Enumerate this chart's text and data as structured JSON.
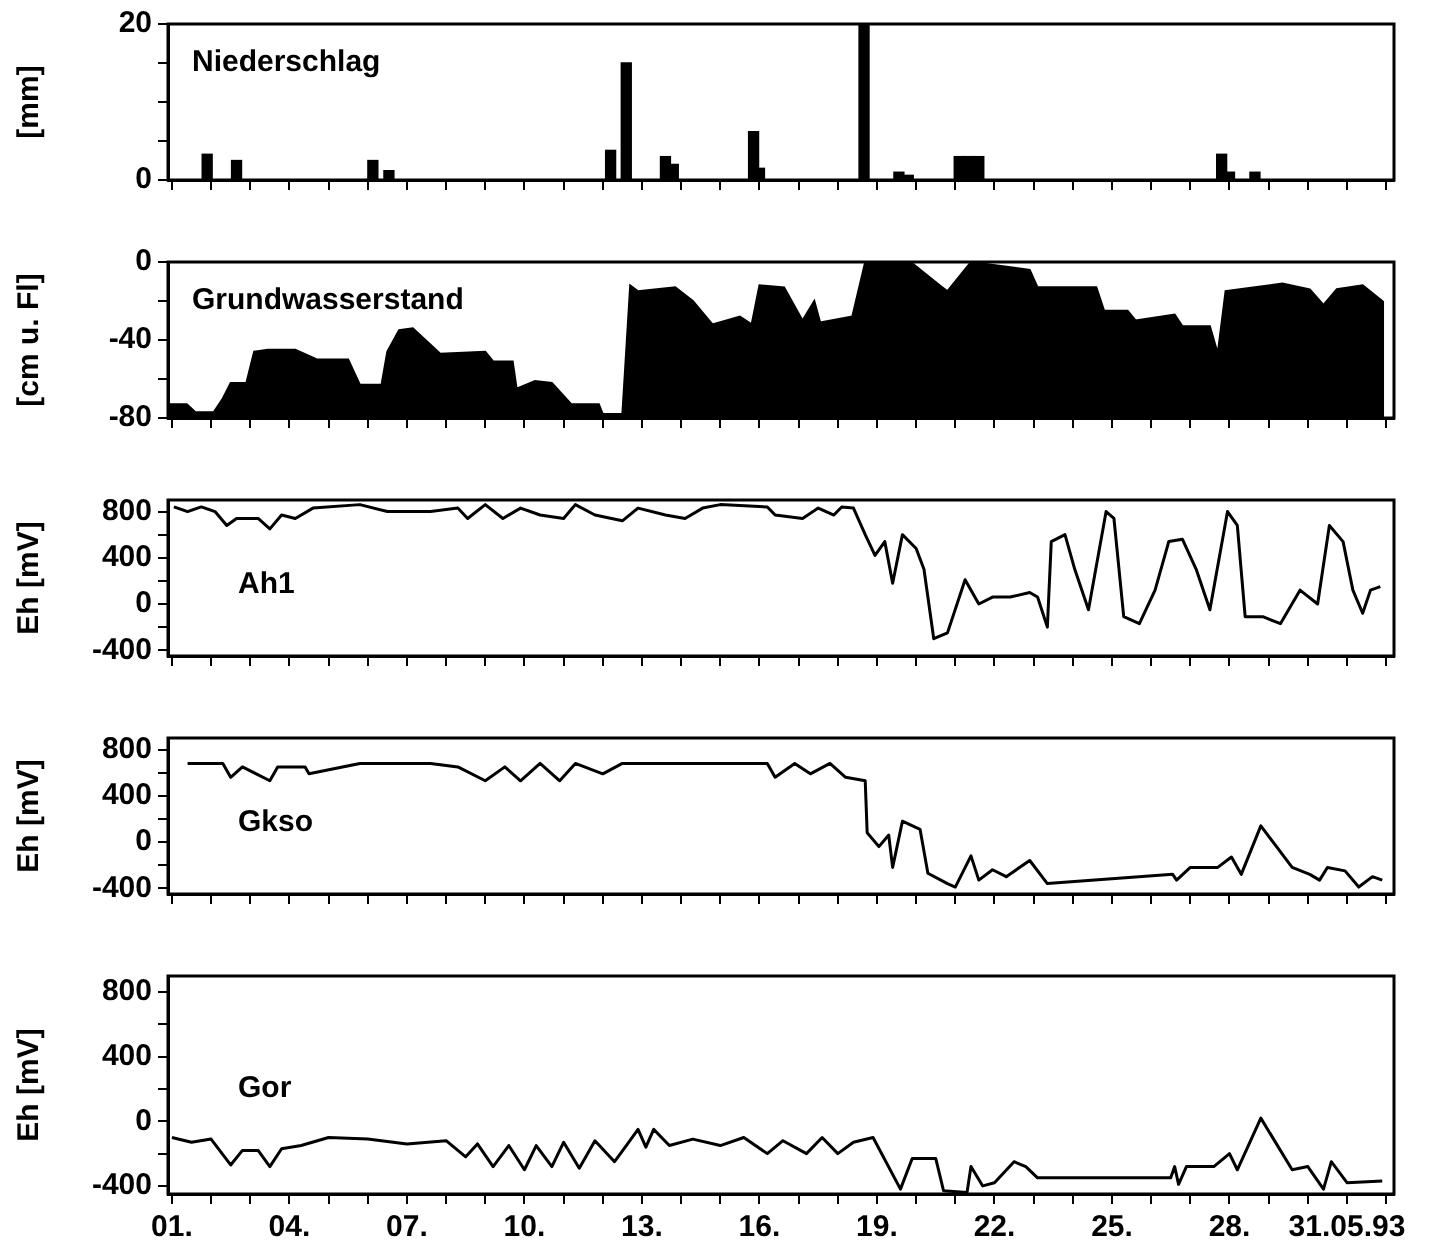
{
  "chart_data": [
    {
      "type": "bar",
      "annotations": [
        "Niederschlag"
      ],
      "ylabel": "[mm]",
      "color": "#000000",
      "tick_labels": "y",
      "x": [
        1.9,
        2.65,
        6.13,
        6.54,
        12.2,
        12.6,
        13.6,
        13.8,
        15.85,
        16.0,
        18.67,
        19.56,
        19.8,
        21.1,
        21.35,
        21.6,
        27.8,
        28.0,
        28.65
      ],
      "values": [
        3.3,
        2.5,
        2.5,
        1.2,
        3.8,
        15,
        3,
        2,
        6.2,
        1.5,
        20,
        1,
        0.6,
        3,
        3,
        3,
        3.3,
        1,
        1
      ],
      "xlim": [
        0.9,
        32.2
      ],
      "xticks": [
        {
          "value": 1,
          "label": null
        },
        {
          "value": 2,
          "label": null
        },
        {
          "value": 3,
          "label": null
        },
        {
          "value": 4,
          "label": null
        },
        {
          "value": 5,
          "label": null
        },
        {
          "value": 6,
          "label": null
        },
        {
          "value": 7,
          "label": null
        },
        {
          "value": 8,
          "label": null
        },
        {
          "value": 9,
          "label": null
        },
        {
          "value": 10,
          "label": null
        },
        {
          "value": 11,
          "label": null
        },
        {
          "value": 12,
          "label": null
        },
        {
          "value": 13,
          "label": null
        },
        {
          "value": 14,
          "label": null
        },
        {
          "value": 15,
          "label": null
        },
        {
          "value": 16,
          "label": null
        },
        {
          "value": 17,
          "label": null
        },
        {
          "value": 18,
          "label": null
        },
        {
          "value": 19,
          "label": null
        },
        {
          "value": 20,
          "label": null
        },
        {
          "value": 21,
          "label": null
        },
        {
          "value": 22,
          "label": null
        },
        {
          "value": 23,
          "label": null
        },
        {
          "value": 24,
          "label": null
        },
        {
          "value": 25,
          "label": null
        },
        {
          "value": 26,
          "label": null
        },
        {
          "value": 27,
          "label": null
        },
        {
          "value": 28,
          "label": null
        },
        {
          "value": 29,
          "label": null
        },
        {
          "value": 30,
          "label": null
        },
        {
          "value": 31,
          "label": null
        },
        {
          "value": 32,
          "label": null
        }
      ],
      "ylim": [
        0,
        20
      ],
      "yticks": [
        0,
        {
          "value": 5,
          "label": null
        },
        {
          "value": 10,
          "label": null
        },
        {
          "value": 15,
          "label": null
        },
        20
      ]
    },
    {
      "type": "area",
      "annotations": [
        "Grundwasserstand"
      ],
      "ylabel": "[cm u. Fl]",
      "color": "#000000",
      "tick_labels": "y",
      "x": [
        0.9,
        0.91,
        1.38,
        1.6,
        2.07,
        2.3,
        2.5,
        2.9,
        3.1,
        3.45,
        4.15,
        4.7,
        5.5,
        5.8,
        6.35,
        6.5,
        6.8,
        7.15,
        7.85,
        9,
        9.2,
        9.7,
        9.8,
        10.27,
        10.7,
        11.2,
        11.9,
        12,
        12.5,
        12.7,
        12.9,
        13.85,
        14.3,
        14.8,
        15.5,
        15.8,
        16,
        16.63,
        17.1,
        17.4,
        17.55,
        18.37,
        18.7,
        19.86,
        20.6,
        20.8,
        21.4,
        22.9,
        23.1,
        24.6,
        24.8,
        25.4,
        25.6,
        26.6,
        26.8,
        27.5,
        27.7,
        27.9,
        28.65,
        29.35,
        30.05,
        30.4,
        30.74,
        31.4,
        31.9,
        31.92
      ],
      "values": [
        -80,
        -73,
        -73,
        -77,
        -77,
        -70,
        -62,
        -62,
        -46,
        -45,
        -45,
        -50,
        -50,
        -63,
        -63,
        -46,
        -35,
        -34,
        -47,
        -46,
        -51,
        -51,
        -65,
        -61,
        -62,
        -73,
        -73,
        -78,
        -78,
        -12,
        -15,
        -13,
        -20,
        -32,
        -28,
        -32,
        -12,
        -13,
        -30,
        -20,
        -31,
        -28,
        0,
        0,
        -12,
        -15,
        0,
        -4,
        -13,
        -13,
        -25,
        -25,
        -30,
        -27,
        -33,
        -33,
        -47,
        -15,
        -13,
        -11,
        -14,
        -22,
        -14,
        -12,
        -20,
        -80
      ],
      "xlim": [
        0.9,
        32.2
      ],
      "xticks": [
        {
          "value": 1,
          "label": null
        },
        {
          "value": 2,
          "label": null
        },
        {
          "value": 3,
          "label": null
        },
        {
          "value": 4,
          "label": null
        },
        {
          "value": 5,
          "label": null
        },
        {
          "value": 6,
          "label": null
        },
        {
          "value": 7,
          "label": null
        },
        {
          "value": 8,
          "label": null
        },
        {
          "value": 9,
          "label": null
        },
        {
          "value": 10,
          "label": null
        },
        {
          "value": 11,
          "label": null
        },
        {
          "value": 12,
          "label": null
        },
        {
          "value": 13,
          "label": null
        },
        {
          "value": 14,
          "label": null
        },
        {
          "value": 15,
          "label": null
        },
        {
          "value": 16,
          "label": null
        },
        {
          "value": 17,
          "label": null
        },
        {
          "value": 18,
          "label": null
        },
        {
          "value": 19,
          "label": null
        },
        {
          "value": 20,
          "label": null
        },
        {
          "value": 21,
          "label": null
        },
        {
          "value": 22,
          "label": null
        },
        {
          "value": 23,
          "label": null
        },
        {
          "value": 24,
          "label": null
        },
        {
          "value": 25,
          "label": null
        },
        {
          "value": 26,
          "label": null
        },
        {
          "value": 27,
          "label": null
        },
        {
          "value": 28,
          "label": null
        },
        {
          "value": 29,
          "label": null
        },
        {
          "value": 30,
          "label": null
        },
        {
          "value": 31,
          "label": null
        },
        {
          "value": 32,
          "label": null
        }
      ],
      "ylim": [
        -80,
        0
      ],
      "yticks": [
        -80,
        {
          "value": -60,
          "label": null
        },
        -40,
        {
          "value": -20,
          "label": null
        },
        0
      ]
    },
    {
      "type": "line",
      "annotations": [
        "Ah1"
      ],
      "ylabel": "Eh [mV]",
      "color": "#000000",
      "tick_labels": "y",
      "x": [
        1.05,
        1.4,
        1.75,
        2.1,
        2.4,
        2.65,
        3.2,
        3.5,
        3.8,
        4.15,
        4.6,
        5.8,
        6.5,
        7.6,
        8.3,
        8.55,
        9,
        9.45,
        9.9,
        10.4,
        11,
        11.3,
        11.8,
        12.5,
        12.9,
        13.6,
        14.1,
        14.55,
        15,
        16.2,
        16.4,
        17.1,
        17.5,
        17.9,
        18.1,
        18.4,
        18.7,
        18.95,
        19.2,
        19.4,
        19.65,
        20,
        20.2,
        20.45,
        20.8,
        21.25,
        21.6,
        21.95,
        22.4,
        22.9,
        23.1,
        23.35,
        23.45,
        23.8,
        24.05,
        24.4,
        24.85,
        25.05,
        25.3,
        25.7,
        26.1,
        26.45,
        26.8,
        27.15,
        27.5,
        27.95,
        28.2,
        28.4,
        28.85,
        29.3,
        29.8,
        30.25,
        30.55,
        30.9,
        31.15,
        31.4,
        31.6,
        31.85
      ],
      "values": [
        840,
        800,
        840,
        800,
        680,
        740,
        740,
        650,
        770,
        740,
        830,
        860,
        800,
        800,
        830,
        740,
        860,
        740,
        830,
        770,
        740,
        860,
        770,
        720,
        830,
        770,
        740,
        830,
        860,
        840,
        770,
        740,
        830,
        770,
        840,
        830,
        600,
        420,
        540,
        180,
        600,
        480,
        300,
        -300,
        -250,
        210,
        0,
        60,
        60,
        100,
        60,
        -200,
        540,
        600,
        300,
        -50,
        800,
        740,
        -110,
        -170,
        120,
        540,
        560,
        300,
        -50,
        800,
        680,
        -110,
        -110,
        -170,
        120,
        0,
        680,
        540,
        120,
        -80,
        120,
        150
      ],
      "xlim": [
        0.9,
        32.2
      ],
      "xticks": [
        {
          "value": 1,
          "label": null
        },
        {
          "value": 2,
          "label": null
        },
        {
          "value": 3,
          "label": null
        },
        {
          "value": 4,
          "label": null
        },
        {
          "value": 5,
          "label": null
        },
        {
          "value": 6,
          "label": null
        },
        {
          "value": 7,
          "label": null
        },
        {
          "value": 8,
          "label": null
        },
        {
          "value": 9,
          "label": null
        },
        {
          "value": 10,
          "label": null
        },
        {
          "value": 11,
          "label": null
        },
        {
          "value": 12,
          "label": null
        },
        {
          "value": 13,
          "label": null
        },
        {
          "value": 14,
          "label": null
        },
        {
          "value": 15,
          "label": null
        },
        {
          "value": 16,
          "label": null
        },
        {
          "value": 17,
          "label": null
        },
        {
          "value": 18,
          "label": null
        },
        {
          "value": 19,
          "label": null
        },
        {
          "value": 20,
          "label": null
        },
        {
          "value": 21,
          "label": null
        },
        {
          "value": 22,
          "label": null
        },
        {
          "value": 23,
          "label": null
        },
        {
          "value": 24,
          "label": null
        },
        {
          "value": 25,
          "label": null
        },
        {
          "value": 26,
          "label": null
        },
        {
          "value": 27,
          "label": null
        },
        {
          "value": 28,
          "label": null
        },
        {
          "value": 29,
          "label": null
        },
        {
          "value": 30,
          "label": null
        },
        {
          "value": 31,
          "label": null
        },
        {
          "value": 32,
          "label": null
        }
      ],
      "ylim": [
        -450,
        900
      ],
      "yticks": [
        -400,
        {
          "value": -200,
          "label": null
        },
        0,
        {
          "value": 200,
          "label": null
        },
        400,
        {
          "value": 600,
          "label": null
        },
        800
      ]
    },
    {
      "type": "line",
      "annotations": [
        "Gkso"
      ],
      "ylabel": "Eh [mV]",
      "color": "#000000",
      "tick_labels": "y",
      "x": [
        1.4,
        2.3,
        2.5,
        2.8,
        3.5,
        3.7,
        4.4,
        4.5,
        5.8,
        7.6,
        8.3,
        9,
        9.5,
        9.9,
        10.4,
        10.9,
        11.3,
        12,
        12.5,
        16.2,
        16.4,
        16.9,
        17.3,
        17.8,
        18.2,
        18.7,
        18.75,
        19.05,
        19.3,
        19.4,
        19.65,
        20.1,
        20.3,
        20.8,
        21,
        21.4,
        21.6,
        21.95,
        22.3,
        22.9,
        23.35,
        26.55,
        26.65,
        27,
        27.7,
        28.05,
        28.3,
        28.8,
        29.6,
        30.05,
        30.3,
        30.5,
        30.95,
        31.3,
        31.65,
        31.9
      ],
      "values": [
        680,
        680,
        560,
        650,
        530,
        650,
        650,
        590,
        680,
        680,
        650,
        530,
        650,
        530,
        680,
        530,
        680,
        590,
        680,
        680,
        560,
        680,
        590,
        680,
        560,
        530,
        80,
        -40,
        60,
        -220,
        180,
        110,
        -270,
        -360,
        -390,
        -120,
        -330,
        -240,
        -300,
        -160,
        -360,
        -280,
        -330,
        -220,
        -220,
        -130,
        -280,
        140,
        -220,
        -280,
        -330,
        -220,
        -250,
        -390,
        -300,
        -330
      ],
      "xlim": [
        0.9,
        32.2
      ],
      "xticks": [
        {
          "value": 1,
          "label": null
        },
        {
          "value": 2,
          "label": null
        },
        {
          "value": 3,
          "label": null
        },
        {
          "value": 4,
          "label": null
        },
        {
          "value": 5,
          "label": null
        },
        {
          "value": 6,
          "label": null
        },
        {
          "value": 7,
          "label": null
        },
        {
          "value": 8,
          "label": null
        },
        {
          "value": 9,
          "label": null
        },
        {
          "value": 10,
          "label": null
        },
        {
          "value": 11,
          "label": null
        },
        {
          "value": 12,
          "label": null
        },
        {
          "value": 13,
          "label": null
        },
        {
          "value": 14,
          "label": null
        },
        {
          "value": 15,
          "label": null
        },
        {
          "value": 16,
          "label": null
        },
        {
          "value": 17,
          "label": null
        },
        {
          "value": 18,
          "label": null
        },
        {
          "value": 19,
          "label": null
        },
        {
          "value": 20,
          "label": null
        },
        {
          "value": 21,
          "label": null
        },
        {
          "value": 22,
          "label": null
        },
        {
          "value": 23,
          "label": null
        },
        {
          "value": 24,
          "label": null
        },
        {
          "value": 25,
          "label": null
        },
        {
          "value": 26,
          "label": null
        },
        {
          "value": 27,
          "label": null
        },
        {
          "value": 28,
          "label": null
        },
        {
          "value": 29,
          "label": null
        },
        {
          "value": 30,
          "label": null
        },
        {
          "value": 31,
          "label": null
        },
        {
          "value": 32,
          "label": null
        }
      ],
      "ylim": [
        -450,
        900
      ],
      "yticks": [
        -400,
        {
          "value": -200,
          "label": null
        },
        0,
        {
          "value": 200,
          "label": null
        },
        400,
        {
          "value": 600,
          "label": null
        },
        800
      ]
    },
    {
      "type": "line",
      "annotations": [
        "Gor"
      ],
      "ylabel": "Eh [mV]",
      "color": "#000000",
      "x": [
        1,
        1.5,
        2,
        2.5,
        2.8,
        3.2,
        3.5,
        3.8,
        4.3,
        5,
        6,
        7,
        8,
        8.5,
        8.8,
        9.2,
        9.6,
        10,
        10.3,
        10.7,
        11,
        11.4,
        11.8,
        12.3,
        12.6,
        12.9,
        13.1,
        13.3,
        13.7,
        14.3,
        15,
        15.6,
        16.2,
        16.6,
        17.2,
        17.6,
        18,
        18.4,
        18.9,
        19.6,
        19.9,
        20.5,
        20.7,
        21.3,
        21.4,
        21.7,
        22,
        22.5,
        22.8,
        23.1,
        26.5,
        26.6,
        26.7,
        26.9,
        27.6,
        28,
        28.2,
        28.8,
        29.6,
        30,
        30.4,
        30.6,
        31,
        31.9
      ],
      "values": [
        -100,
        -130,
        -110,
        -270,
        -180,
        -180,
        -280,
        -170,
        -150,
        -100,
        -110,
        -140,
        -120,
        -220,
        -140,
        -280,
        -150,
        -300,
        -150,
        -280,
        -130,
        -290,
        -120,
        -250,
        -150,
        -50,
        -160,
        -50,
        -150,
        -110,
        -150,
        -100,
        -200,
        -120,
        -200,
        -100,
        -200,
        -130,
        -100,
        -420,
        -230,
        -230,
        -430,
        -440,
        -280,
        -400,
        -380,
        -250,
        -280,
        -350,
        -350,
        -280,
        -390,
        -280,
        -280,
        -200,
        -300,
        20,
        -300,
        -280,
        -420,
        -250,
        -380,
        -370
      ],
      "xlim": [
        0.9,
        32.2
      ],
      "xticks": [
        {
          "value": 1,
          "label": "01."
        },
        {
          "value": 2,
          "label": null
        },
        {
          "value": 3,
          "label": null
        },
        {
          "value": 4,
          "label": "04."
        },
        {
          "value": 5,
          "label": null
        },
        {
          "value": 6,
          "label": null
        },
        {
          "value": 7,
          "label": "07."
        },
        {
          "value": 8,
          "label": null
        },
        {
          "value": 9,
          "label": null
        },
        {
          "value": 10,
          "label": "10."
        },
        {
          "value": 11,
          "label": null
        },
        {
          "value": 12,
          "label": null
        },
        {
          "value": 13,
          "label": "13."
        },
        {
          "value": 14,
          "label": null
        },
        {
          "value": 15,
          "label": null
        },
        {
          "value": 16,
          "label": "16."
        },
        {
          "value": 17,
          "label": null
        },
        {
          "value": 18,
          "label": null
        },
        {
          "value": 19,
          "label": "19."
        },
        {
          "value": 20,
          "label": null
        },
        {
          "value": 21,
          "label": null
        },
        {
          "value": 22,
          "label": "22."
        },
        {
          "value": 23,
          "label": null
        },
        {
          "value": 24,
          "label": null
        },
        {
          "value": 25,
          "label": "25."
        },
        {
          "value": 26,
          "label": null
        },
        {
          "value": 27,
          "label": null
        },
        {
          "value": 28,
          "label": "28."
        },
        {
          "value": 29,
          "label": null
        },
        {
          "value": 30,
          "label": null
        },
        {
          "value": 31,
          "label": "31.05.93"
        },
        {
          "value": 32,
          "label": null
        }
      ],
      "ylim": [
        -450,
        900
      ],
      "yticks": [
        -400,
        {
          "value": -200,
          "label": null
        },
        0,
        {
          "value": 200,
          "label": null
        },
        400,
        {
          "value": 600,
          "label": null
        },
        800
      ]
    }
  ]
}
